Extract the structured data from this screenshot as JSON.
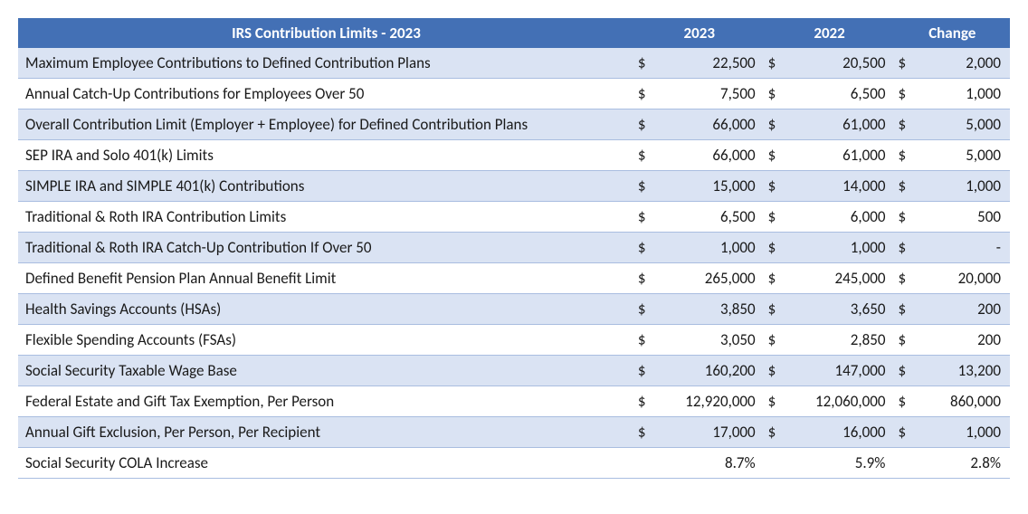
{
  "table": {
    "title": "IRS Contribution Limits - 2023",
    "columns": [
      "2023",
      "2022",
      "Change"
    ],
    "header_bg": "#4370b5",
    "header_fg": "#ffffff",
    "stripe_odd_bg": "#dae3f3",
    "stripe_even_bg": "#ffffff",
    "border_color": "#a9bde0",
    "font_size": 17,
    "rows": [
      {
        "label": "Maximum Employee Contributions to Defined Contribution Plans",
        "c1": "$",
        "v1": "22,500",
        "c2": "$",
        "v2": "20,500",
        "c3": "$",
        "v3": "2,000"
      },
      {
        "label": "Annual Catch-Up Contributions for Employees Over 50",
        "c1": "$",
        "v1": "7,500",
        "c2": "$",
        "v2": "6,500",
        "c3": "$",
        "v3": "1,000"
      },
      {
        "label": "Overall Contribution Limit (Employer + Employee) for Defined Contribution Plans",
        "c1": "$",
        "v1": "66,000",
        "c2": "$",
        "v2": "61,000",
        "c3": "$",
        "v3": "5,000"
      },
      {
        "label": "SEP IRA and Solo 401(k) Limits",
        "c1": "$",
        "v1": "66,000",
        "c2": "$",
        "v2": "61,000",
        "c3": "$",
        "v3": "5,000"
      },
      {
        "label": "SIMPLE IRA and SIMPLE 401(k) Contributions",
        "c1": "$",
        "v1": "15,000",
        "c2": "$",
        "v2": "14,000",
        "c3": "$",
        "v3": "1,000"
      },
      {
        "label": "Traditional & Roth IRA Contribution Limits",
        "c1": "$",
        "v1": "6,500",
        "c2": "$",
        "v2": "6,000",
        "c3": "$",
        "v3": "500"
      },
      {
        "label": "Traditional & Roth IRA Catch-Up Contribution If Over 50",
        "c1": "$",
        "v1": "1,000",
        "c2": "$",
        "v2": "1,000",
        "c3": "$",
        "v3": "-"
      },
      {
        "label": "Defined Benefit Pension Plan Annual Benefit Limit",
        "c1": "$",
        "v1": "265,000",
        "c2": "$",
        "v2": "245,000",
        "c3": "$",
        "v3": "20,000"
      },
      {
        "label": "Health Savings Accounts (HSAs)",
        "c1": "$",
        "v1": "3,850",
        "c2": "$",
        "v2": "3,650",
        "c3": "$",
        "v3": "200"
      },
      {
        "label": "Flexible Spending Accounts (FSAs)",
        "c1": "$",
        "v1": "3,050",
        "c2": "$",
        "v2": "2,850",
        "c3": "$",
        "v3": "200"
      },
      {
        "label": "Social Security Taxable Wage Base",
        "c1": "$",
        "v1": "160,200",
        "c2": "$",
        "v2": "147,000",
        "c3": "$",
        "v3": "13,200"
      },
      {
        "label": "Federal Estate and Gift Tax Exemption, Per Person",
        "c1": "$",
        "v1": "12,920,000",
        "c2": "$",
        "v2": "12,060,000",
        "c3": "$",
        "v3": "860,000"
      },
      {
        "label": "Annual Gift Exclusion, Per Person, Per Recipient",
        "c1": "$",
        "v1": "17,000",
        "c2": "$",
        "v2": "16,000",
        "c3": "$",
        "v3": "1,000"
      },
      {
        "label": "Social Security COLA Increase",
        "c1": "",
        "v1": "8.7%",
        "c2": "",
        "v2": "5.9%",
        "c3": "",
        "v3": "2.8%"
      }
    ]
  }
}
